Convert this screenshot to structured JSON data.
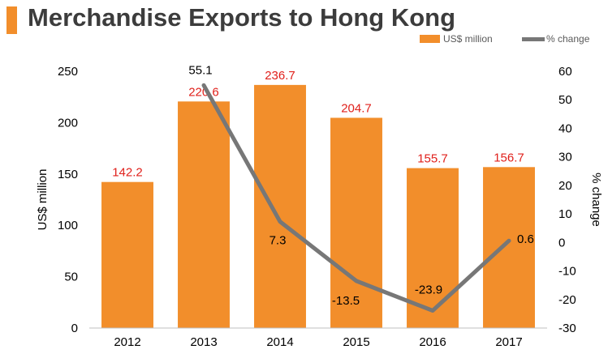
{
  "title": "Merchandise Exports to Hong Kong",
  "colors": {
    "bar": "#f28e2b",
    "line": "#777777",
    "bar_label": "#e0201b",
    "accent": "#f28e2b"
  },
  "chart_data": {
    "type": "bar",
    "categories": [
      "2012",
      "2013",
      "2014",
      "2015",
      "2016",
      "2017"
    ],
    "series": [
      {
        "name": "US$ million",
        "type": "bar",
        "axis": "left",
        "values": [
          142.2,
          220.6,
          236.7,
          204.7,
          155.7,
          156.7
        ],
        "labels": [
          "142.2",
          "220.6",
          "236.7",
          "204.7",
          "155.7",
          "156.7"
        ]
      },
      {
        "name": "% change",
        "type": "line",
        "axis": "right",
        "values": [
          null,
          55.1,
          7.3,
          -13.5,
          -23.9,
          0.6
        ],
        "labels": [
          "",
          "55.1",
          "7.3",
          "-13.5",
          "-23.9",
          "0.6"
        ]
      }
    ],
    "ylabel": "US$ million",
    "y2label": "% change",
    "ylim": [
      0,
      250
    ],
    "y2lim": [
      -30,
      60
    ],
    "yticks": [
      "0",
      "50",
      "100",
      "150",
      "200",
      "250"
    ],
    "y2ticks": [
      "-30",
      "-20",
      "-10",
      "0",
      "10",
      "20",
      "30",
      "40",
      "50",
      "60"
    ],
    "grid": false,
    "legend": "top-right"
  }
}
